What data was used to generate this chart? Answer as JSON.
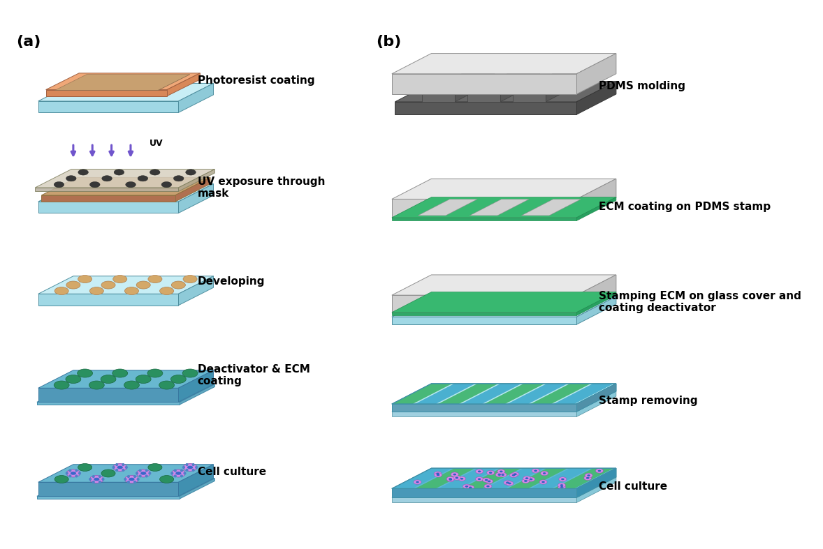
{
  "title_a": "(a)",
  "title_b": "(b)",
  "labels_a": [
    "Photoresist coating",
    "UV exposure through\nmask",
    "Developing",
    "Deactivator & ECM\ncoating",
    "Cell culture"
  ],
  "labels_b": [
    "PDMS molding",
    "ECM coating on PDMS stamp",
    "Stamping ECM on glass cover and\ncoating deactivator",
    "Stamp removing",
    "Cell culture"
  ],
  "bg_color": "#ffffff",
  "light_blue_top": "#c8eef5",
  "light_blue_right": "#8ecad8",
  "light_blue_front": "#a0d8e5",
  "orange_top": "#f0a878",
  "orange_front": "#d88858",
  "tan_inner": "#c8a070",
  "blue_ecm_top": "#68b8d0",
  "blue_ecm_right": "#4090b0",
  "blue_ecm_front": "#5098b8",
  "gray_top": "#e8e8e8",
  "gray_right": "#c0c0c0",
  "gray_front": "#d0d0d0",
  "dark_gray_top": "#686868",
  "dark_gray_right": "#484848",
  "dark_gray_front": "#585858",
  "green_ecm": "#40b878",
  "teal_stripe": "#48b890",
  "blue_stripe": "#4ab0d0",
  "purple_cell": "#c888e0",
  "blue_cell_center": "#3868c8",
  "green_dot": "#2a9060"
}
